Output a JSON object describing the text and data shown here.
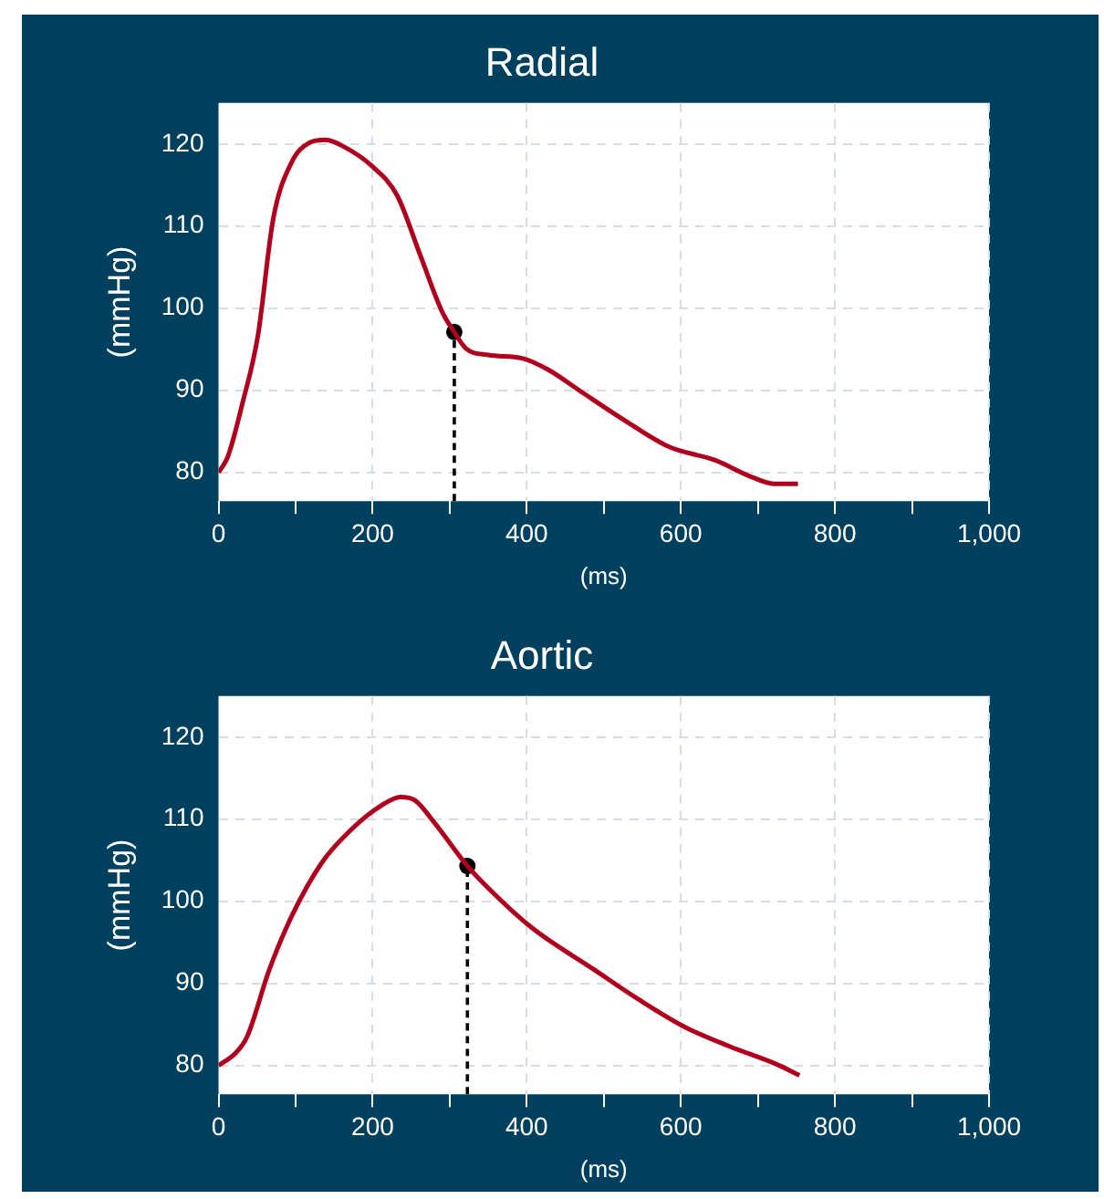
{
  "chart_data": [
    {
      "type": "line",
      "title": "Radial",
      "xlabel": "(ms)",
      "ylabel": "(mmHg)",
      "xlim": [
        0,
        1000
      ],
      "xticks": [
        0,
        {
          "value": 100,
          "label": null
        },
        200,
        {
          "value": 300,
          "label": null
        },
        400,
        {
          "value": 500,
          "label": null
        },
        600,
        {
          "value": 700,
          "label": null
        },
        800,
        {
          "value": 900,
          "label": null
        },
        {
          "value": 1000,
          "label": "1,000"
        }
      ],
      "ylim": [
        76.5,
        125
      ],
      "yticks": [
        80,
        90,
        100,
        110,
        120
      ],
      "grid": true,
      "legend": false,
      "marker": "none",
      "series": [
        {
          "color": "#b0001e",
          "x": [
            0,
            12,
            31,
            51,
            71,
            95,
            117,
            139,
            164,
            198,
            232,
            262,
            291,
            306,
            321,
            350,
            394,
            428,
            468,
            526,
            585,
            644,
            693,
            722,
            752
          ],
          "values": [
            80,
            81.9,
            88.4,
            96.6,
            110.9,
            117.8,
            120.1,
            120.5,
            119.6,
            117.4,
            113.7,
            106.4,
            99.4,
            97.1,
            95.1,
            94.3,
            93.9,
            92.5,
            90,
            86.4,
            83.1,
            81.5,
            79.4,
            78.6,
            78.6
          ]
        },
        {
          "type": "line",
          "color": "#000000",
          "line_style": "dashed",
          "x": [
            306,
            306
          ],
          "values": [
            76.5,
            97.1
          ]
        },
        {
          "type": "scatter",
          "color": "#000000",
          "marker": "circle",
          "x": [
            306
          ],
          "values": [
            97.1
          ]
        }
      ]
    },
    {
      "type": "line",
      "title": "Aortic",
      "xlabel": "(ms)",
      "ylabel": "(mmHg)",
      "xlim": [
        0,
        1000
      ],
      "xticks": [
        0,
        {
          "value": 100,
          "label": null
        },
        200,
        {
          "value": 300,
          "label": null
        },
        400,
        {
          "value": 500,
          "label": null
        },
        600,
        {
          "value": 700,
          "label": null
        },
        800,
        {
          "value": 900,
          "label": null
        },
        {
          "value": 1000,
          "label": "1,000"
        }
      ],
      "ylim": [
        76.5,
        125
      ],
      "yticks": [
        80,
        90,
        100,
        110,
        120
      ],
      "grid": true,
      "legend": false,
      "marker": "none",
      "series": [
        {
          "color": "#b0001e",
          "x": [
            0,
            22,
            37,
            66,
            95,
            134,
            173,
            212,
            236,
            255,
            280,
            323,
            360,
            409,
            487,
            546,
            605,
            664,
            723,
            754
          ],
          "values": [
            80,
            81.5,
            83.5,
            91.7,
            98.2,
            104.7,
            108.8,
            111.7,
            112.7,
            112.3,
            109.6,
            104.3,
            100.7,
            96.6,
            91.7,
            88,
            84.7,
            82.3,
            80.2,
            78.8
          ]
        },
        {
          "type": "line",
          "color": "#000000",
          "line_style": "dashed",
          "x": [
            323,
            323
          ],
          "values": [
            76.5,
            104.3
          ]
        },
        {
          "type": "scatter",
          "color": "#000000",
          "marker": "circle",
          "x": [
            323
          ],
          "values": [
            104.3
          ]
        }
      ]
    }
  ]
}
